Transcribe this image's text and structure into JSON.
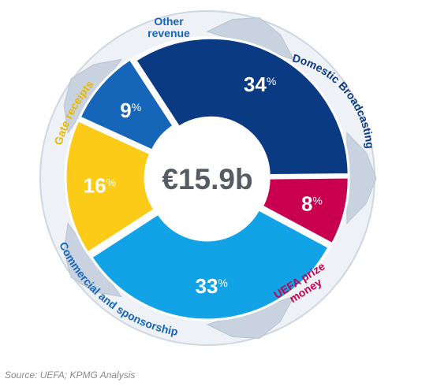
{
  "chart_data": {
    "type": "pie",
    "center_label": "€15.9b",
    "slices": [
      {
        "label": "Domestic Broadcasting",
        "value": 34,
        "value_label": "34",
        "color": "#0a3a82"
      },
      {
        "label": "UEFA prize money",
        "value": 8,
        "value_label": "8",
        "color": "#c8004f"
      },
      {
        "label": "Commercial and sponsorship",
        "value": 33,
        "value_label": "33",
        "color": "#12a2e6"
      },
      {
        "label": "Gate receipts",
        "value": 16,
        "value_label": "16",
        "color": "#fbcb18"
      },
      {
        "label": "Other revenue",
        "value": 9,
        "value_label": "9",
        "color": "#1565b8"
      }
    ],
    "percent_sign": "%",
    "label_colors": {
      "Domestic Broadcasting": "#0a3a82",
      "UEFA prize money": "#c8004f",
      "Commercial and sponsorship": "#1565b8",
      "Gate receipts": "#e8b800",
      "Other revenue": "#1565b8"
    },
    "background_style": "football"
  },
  "footer": {
    "source": "Source:  UEFA; KPMG Analysis"
  }
}
